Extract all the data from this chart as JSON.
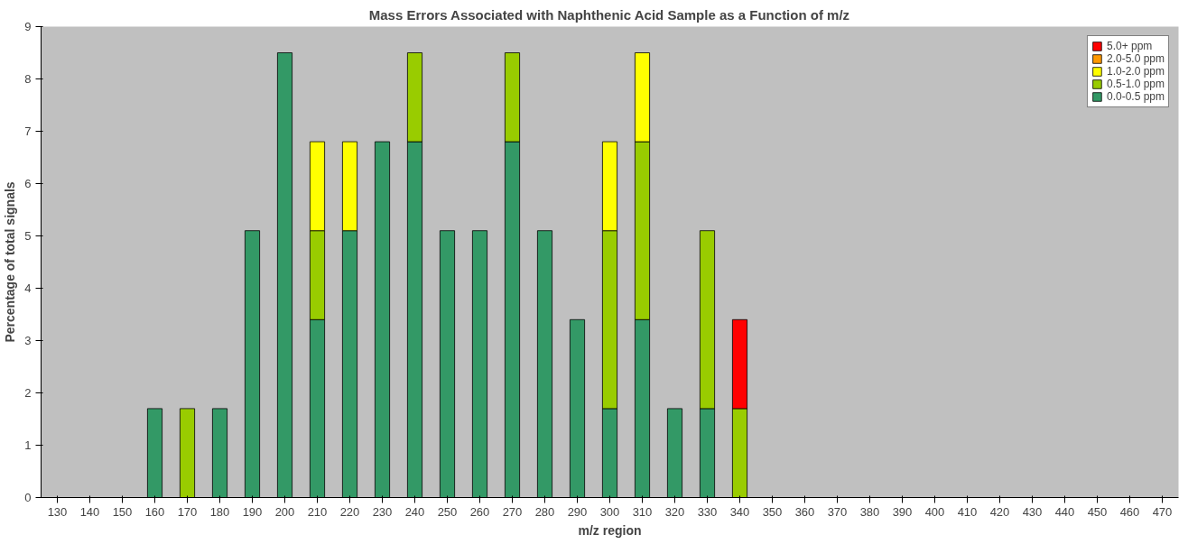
{
  "chart_data": {
    "type": "bar",
    "stacked": true,
    "title": "Mass Errors Associated with Naphthenic Acid Sample as a Function of m/z",
    "xlabel": "m/z region",
    "ylabel": "Percentage of total signals",
    "categories": [
      "130",
      "140",
      "150",
      "160",
      "170",
      "180",
      "190",
      "200",
      "210",
      "220",
      "230",
      "240",
      "250",
      "260",
      "270",
      "280",
      "290",
      "300",
      "310",
      "320",
      "330",
      "340",
      "350",
      "360",
      "370",
      "380",
      "390",
      "400",
      "410",
      "420",
      "430",
      "440",
      "450",
      "460",
      "470"
    ],
    "series": [
      {
        "name": "0.0-0.5 ppm",
        "color": "#339966",
        "values": [
          null,
          null,
          null,
          1.7,
          null,
          1.7,
          5.1,
          8.5,
          3.4,
          5.1,
          6.8,
          6.8,
          5.1,
          5.1,
          6.8,
          5.1,
          3.4,
          1.7,
          3.4,
          1.7,
          1.7,
          null,
          null,
          null,
          null,
          null,
          null,
          null,
          null,
          null,
          null,
          null,
          null,
          null,
          null
        ]
      },
      {
        "name": "0.5-1.0 ppm",
        "color": "#99cc00",
        "values": [
          null,
          null,
          null,
          null,
          1.7,
          null,
          null,
          null,
          1.7,
          null,
          null,
          1.7,
          null,
          null,
          1.7,
          null,
          null,
          3.4,
          3.4,
          null,
          3.4,
          1.7,
          null,
          null,
          null,
          null,
          null,
          null,
          null,
          null,
          null,
          null,
          null,
          null,
          null
        ]
      },
      {
        "name": "1.0-2.0 ppm",
        "color": "#ffff00",
        "values": [
          null,
          null,
          null,
          null,
          null,
          null,
          null,
          null,
          1.7,
          1.7,
          null,
          null,
          null,
          null,
          null,
          null,
          null,
          1.7,
          1.7,
          null,
          null,
          null,
          null,
          null,
          null,
          null,
          null,
          null,
          null,
          null,
          null,
          null,
          null,
          null,
          null
        ]
      },
      {
        "name": "2.0-5.0 ppm",
        "color": "#ff9900",
        "values": [
          null,
          null,
          null,
          null,
          null,
          null,
          null,
          null,
          null,
          null,
          null,
          null,
          null,
          null,
          null,
          null,
          null,
          null,
          null,
          null,
          null,
          null,
          null,
          null,
          null,
          null,
          null,
          null,
          null,
          null,
          null,
          null,
          null,
          null,
          null
        ]
      },
      {
        "name": "5.0+ ppm",
        "color": "#ff0000",
        "values": [
          null,
          null,
          null,
          null,
          null,
          null,
          null,
          null,
          null,
          null,
          null,
          null,
          null,
          null,
          null,
          null,
          null,
          null,
          null,
          null,
          null,
          1.7,
          null,
          null,
          null,
          null,
          null,
          null,
          null,
          null,
          null,
          null,
          null,
          null,
          null
        ]
      }
    ],
    "ylim": [
      0,
      9
    ],
    "yticks": [
      0,
      1,
      2,
      3,
      4,
      5,
      6,
      7,
      8,
      9
    ],
    "grid": false,
    "legend": "top right"
  }
}
